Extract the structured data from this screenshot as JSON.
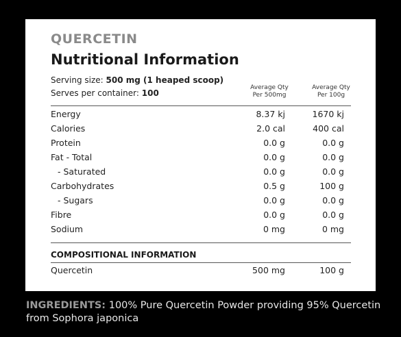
{
  "header": {
    "brand": "QUERCETIN",
    "title": "Nutritional Information"
  },
  "serving": [
    {
      "label": "Serving size:",
      "value": "500 mg (1 heaped scoop)"
    },
    {
      "label": "Serves per container:",
      "value": "100"
    }
  ],
  "columns": [
    [
      "Average Qty",
      "Per 500mg"
    ],
    [
      "Average Qty",
      "Per 100g"
    ]
  ],
  "table": {
    "rows": [
      [
        "Energy",
        "8.37 kj",
        "1670 kj"
      ],
      [
        "Calories",
        "2.0 cal",
        "400 cal"
      ],
      [
        "Protein",
        "0.0 g",
        "0.0 g"
      ],
      [
        "Fat - Total",
        "0.0 g",
        "0.0 g"
      ],
      [
        "- Saturated",
        "0.0 g",
        "0.0 g"
      ],
      [
        "Carbohydrates",
        "0.5 g",
        "100 g"
      ],
      [
        "- Sugars",
        "0.0 g",
        "0.0 g"
      ],
      [
        "Fibre",
        "0.0 g",
        "0.0 g"
      ],
      [
        "Sodium",
        "0 mg",
        "0 mg"
      ]
    ]
  },
  "compositional": {
    "title": "COMPOSITIONAL INFORMATION",
    "rows": [
      [
        "Quercetin",
        "500 mg",
        "100 g"
      ]
    ]
  },
  "ingredients": {
    "label": "INGREDIENTS:",
    "text": "100% Pure Quercetin Powder providing 95% Quercetin from Sophora japonica"
  }
}
